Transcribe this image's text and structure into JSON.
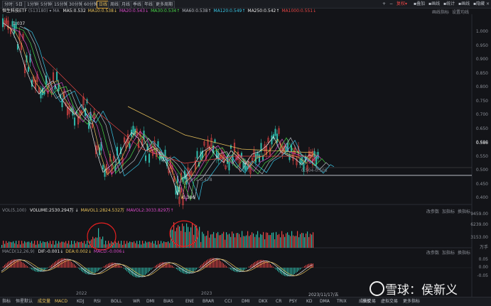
{
  "toolbar": {
    "periods": [
      "分时",
      "5日",
      "1分钟",
      "5分钟",
      "15分钟",
      "30分钟",
      "60分钟",
      "日线",
      "周线",
      "月线",
      "季线",
      "年线",
      "更多周期"
    ],
    "active_period": "日线",
    "right": {
      "plus_icon": "+",
      "minus_icon": "−",
      "tool": "复权",
      "items": [
        "叠加",
        "画线",
        "统计",
        "画线",
        "隐藏"
      ],
      "close_icon": "×"
    }
  },
  "price_legend": {
    "name": "恒生科技ETF",
    "code": "(513180)",
    "ma_label": "MA",
    "items": [
      {
        "text": "MA5:0.532",
        "color": "#e8e8e8"
      },
      {
        "text": "MA10:0.538↓",
        "color": "#e8c15a"
      },
      {
        "text": "MA20:0.543↓",
        "color": "#d94ac8"
      },
      {
        "text": "MA30:0.534↑",
        "color": "#4ad94a"
      },
      {
        "text": "MA60:0.538↑",
        "color": "#b8bcc4"
      },
      {
        "text": "MA120:0.549↑",
        "color": "#3ac8e8"
      },
      {
        "text": "MA250:0.542↑",
        "color": "#e8e8e8"
      },
      {
        "text": "MA1000:0.551↓",
        "color": "#e64545"
      }
    ],
    "right_buttons": [
      "画线指标",
      "设置均线"
    ]
  },
  "price_axis": [
    "1.000",
    "0.950",
    "0.900",
    "0.850",
    "0.800",
    "0.750",
    "0.700",
    "0.650",
    "0.600",
    "0.550",
    "0.500",
    "0.450",
    "0.400"
  ],
  "annotations": {
    "high": "1.037",
    "low": "0.386",
    "mid": "0.471-0.478",
    "right": "0.504-0.506",
    "last_price": "0.586"
  },
  "volume_legend": {
    "title": "VOL(5,100)",
    "items": [
      {
        "text": "VOLUME:2530.294万 ↓",
        "color": "#e8e8e8"
      },
      {
        "text": "MAVOL1:2824.532万",
        "color": "#e8c15a"
      },
      {
        "text": "MAVOL2:3033.829万↑",
        "color": "#d94ac8"
      }
    ],
    "right_buttons": [
      "改参数",
      "加指标",
      "换指标"
    ]
  },
  "volume_axis": [
    "9459.00",
    "6239.00",
    "3153.00",
    "万手"
  ],
  "macd_legend": {
    "title": "MACD(12,26,9)",
    "items": [
      {
        "text": "DIF:-0.001↓",
        "color": "#e8e8e8"
      },
      {
        "text": "DEA:0.002↓",
        "color": "#e8c15a"
      },
      {
        "text": "MACD:-0.006↓",
        "color": "#d94ac8"
      }
    ],
    "right_buttons": [
      "改参数",
      "加指标",
      "换指标"
    ]
  },
  "macd_axis": [
    "0.05",
    "0.00",
    "-0.05"
  ],
  "years": [
    "2022",
    "2023",
    "2023/11/17/五"
  ],
  "bottom_bar": [
    "指标",
    "恒星默认",
    "成交量",
    "MACD",
    "KDJ",
    "RSI",
    "BOLL",
    "WR",
    "DMI",
    "BIAS",
    "ENE",
    "BRAR",
    "CCI",
    "DMI",
    "DKX",
    "CR",
    "PSY",
    "KD",
    "DMA",
    "TRIX",
    "成长交易",
    "虚拟交易",
    "更多指标"
  ],
  "bottom_active": [
    "成交量",
    "MACD"
  ],
  "bottom_right": "模板",
  "watermark": "雪球：侯新义"
}
